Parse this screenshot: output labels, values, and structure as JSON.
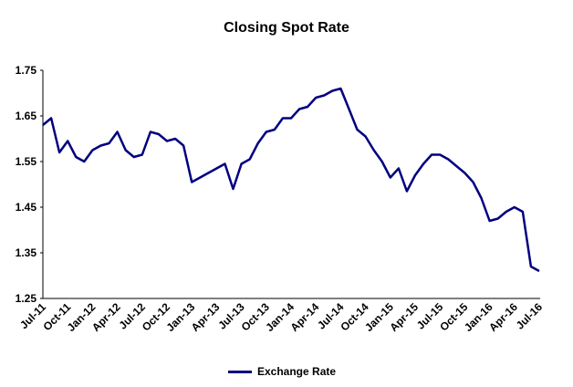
{
  "chart_data": {
    "type": "line",
    "title": "Closing Spot Rate",
    "xlabel": "",
    "ylabel": "",
    "ylim": [
      1.25,
      1.75
    ],
    "y_ticks": [
      "1.25",
      "1.35",
      "1.45",
      "1.55",
      "1.65",
      "1.75"
    ],
    "x_ticks": [
      "Jul-11",
      "Oct-11",
      "Jan-12",
      "Apr-12",
      "Jul-12",
      "Oct-12",
      "Jan-13",
      "Apr-13",
      "Jul-13",
      "Oct-13",
      "Jan-14",
      "Apr-14",
      "Jul-14",
      "Oct-14",
      "Jan-15",
      "Apr-15",
      "Jul-15",
      "Oct-15",
      "Jan-16",
      "Apr-16",
      "Jul-16"
    ],
    "grid": false,
    "legend_position": "bottom",
    "series": [
      {
        "name": "Exchange Rate",
        "color": "#000080",
        "x": [
          "Jul-11",
          "Aug-11",
          "Sep-11",
          "Oct-11",
          "Nov-11",
          "Dec-11",
          "Jan-12",
          "Feb-12",
          "Mar-12",
          "Apr-12",
          "May-12",
          "Jun-12",
          "Jul-12",
          "Aug-12",
          "Sep-12",
          "Oct-12",
          "Nov-12",
          "Dec-12",
          "Jan-13",
          "Feb-13",
          "Mar-13",
          "Apr-13",
          "May-13",
          "Jun-13",
          "Jul-13",
          "Aug-13",
          "Sep-13",
          "Oct-13",
          "Nov-13",
          "Dec-13",
          "Jan-14",
          "Feb-14",
          "Mar-14",
          "Apr-14",
          "May-14",
          "Jun-14",
          "Jul-14",
          "Aug-14",
          "Sep-14",
          "Oct-14",
          "Nov-14",
          "Dec-14",
          "Jan-15",
          "Feb-15",
          "Mar-15",
          "Apr-15",
          "May-15",
          "Jun-15",
          "Jul-15",
          "Aug-15",
          "Sep-15",
          "Oct-15",
          "Nov-15",
          "Dec-15",
          "Jan-16",
          "Feb-16",
          "Mar-16",
          "Apr-16",
          "May-16",
          "Jun-16",
          "Jul-16"
        ],
        "values": [
          1.63,
          1.645,
          1.57,
          1.595,
          1.56,
          1.55,
          1.575,
          1.585,
          1.59,
          1.615,
          1.575,
          1.56,
          1.565,
          1.615,
          1.61,
          1.595,
          1.6,
          1.585,
          1.505,
          1.515,
          1.525,
          1.535,
          1.545,
          1.49,
          1.545,
          1.555,
          1.59,
          1.615,
          1.62,
          1.645,
          1.645,
          1.665,
          1.67,
          1.69,
          1.695,
          1.705,
          1.71,
          1.665,
          1.62,
          1.605,
          1.575,
          1.55,
          1.515,
          1.535,
          1.485,
          1.52,
          1.545,
          1.565,
          1.565,
          1.555,
          1.54,
          1.525,
          1.505,
          1.47,
          1.42,
          1.425,
          1.44,
          1.45,
          1.44,
          1.32,
          1.31
        ]
      }
    ]
  }
}
